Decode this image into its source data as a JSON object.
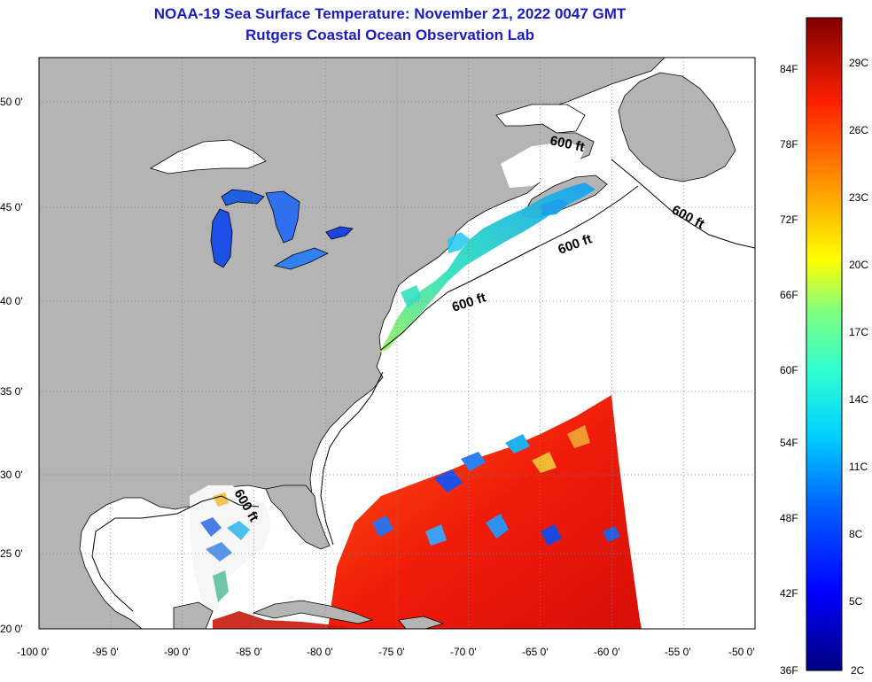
{
  "title": {
    "line1": "NOAA-19 Sea Surface Temperature:  November 21, 2022 0047 GMT",
    "line2": "Rutgers Coastal Ocean Observation Lab"
  },
  "map": {
    "lat_labels": [
      "50 0'",
      "45 0'",
      "40 0'",
      "35 0'",
      "30 0'",
      "25 0'",
      "20 0'"
    ],
    "lon_labels": [
      "-100 0'",
      "-95 0'",
      "-90 0'",
      "-85 0'",
      "-80 0'",
      "-75 0'",
      "-70 0'",
      "-65 0'",
      "-60 0'",
      "-55 0'",
      "-50 0'"
    ],
    "lat_range": [
      20,
      52.5
    ],
    "lon_range": [
      -100,
      -50
    ],
    "depth_label": "600 ft",
    "colors": {
      "land": "#b4b4b4",
      "ocean": "#ffffff",
      "title": "#1c1cbf"
    }
  },
  "colorbar": {
    "fahrenheit_labels": [
      "84F",
      "78F",
      "72F",
      "66F",
      "60F",
      "54F",
      "48F",
      "42F",
      "36F"
    ],
    "celsius_labels": [
      "29C",
      "26C",
      "23C",
      "20C",
      "17C",
      "14C",
      "11C",
      "8C",
      "5C",
      "2C"
    ],
    "range_c": [
      2,
      31
    ]
  }
}
